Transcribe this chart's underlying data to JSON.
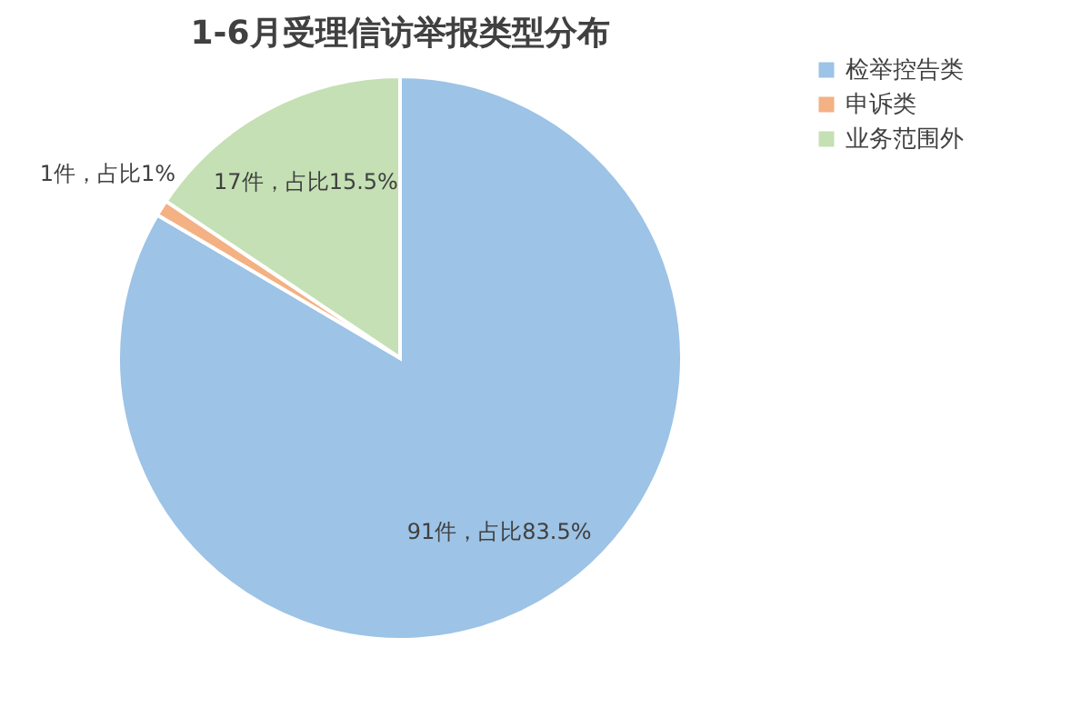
{
  "chart_data": {
    "type": "pie",
    "title": "1-6月受理信访举报类型分布",
    "categories": [
      "检举控告类",
      "申诉类",
      "业务范围外"
    ],
    "values": [
      91,
      1,
      17
    ],
    "colors": [
      "#9dc3e6",
      "#f4b183",
      "#c5e0b4"
    ],
    "value_labels": [
      "91件，占比83.5%",
      "1件，占比1%",
      "17件，占比15.5%"
    ],
    "legend": "right"
  }
}
